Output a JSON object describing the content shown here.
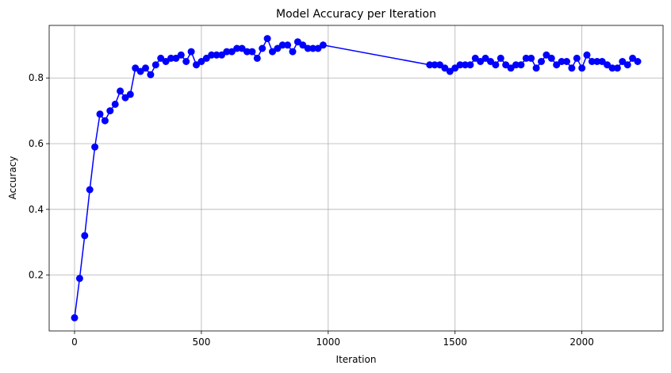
{
  "chart_data": {
    "type": "line",
    "title": "Model Accuracy per Iteration",
    "xlabel": "Iteration",
    "ylabel": "Accuracy",
    "xlim": [
      -100,
      2320
    ],
    "ylim": [
      0.03,
      0.96
    ],
    "xticks": [
      0,
      500,
      1000,
      1500,
      2000
    ],
    "yticks": [
      0.2,
      0.4,
      0.6,
      0.8
    ],
    "xtick_labels": [
      "0",
      "500",
      "1000",
      "1500",
      "2000"
    ],
    "ytick_labels": [
      "0.2",
      "0.4",
      "0.6",
      "0.8"
    ],
    "grid": true,
    "series": [
      {
        "color": "#0000ff",
        "marker": "circle",
        "x": [
          0,
          20,
          40,
          60,
          80,
          100,
          120,
          140,
          160,
          180,
          200,
          220,
          240,
          260,
          280,
          300,
          320,
          340,
          360,
          380,
          400,
          420,
          440,
          460,
          480,
          500,
          520,
          540,
          560,
          580,
          600,
          620,
          640,
          660,
          680,
          700,
          720,
          740,
          760,
          780,
          800,
          820,
          840,
          860,
          880,
          900,
          920,
          940,
          960,
          980,
          1400,
          1420,
          1440,
          1460,
          1480,
          1500,
          1520,
          1540,
          1560,
          1580,
          1600,
          1620,
          1640,
          1660,
          1680,
          1700,
          1720,
          1740,
          1760,
          1780,
          1800,
          1820,
          1840,
          1860,
          1880,
          1900,
          1920,
          1940,
          1960,
          1980,
          2000,
          2020,
          2040,
          2060,
          2080,
          2100,
          2120,
          2140,
          2160,
          2180,
          2200,
          2220
        ],
        "y": [
          0.07,
          0.19,
          0.32,
          0.46,
          0.59,
          0.69,
          0.67,
          0.7,
          0.72,
          0.76,
          0.74,
          0.75,
          0.83,
          0.82,
          0.83,
          0.81,
          0.84,
          0.86,
          0.85,
          0.86,
          0.86,
          0.87,
          0.85,
          0.88,
          0.84,
          0.85,
          0.86,
          0.87,
          0.87,
          0.87,
          0.88,
          0.88,
          0.89,
          0.89,
          0.88,
          0.88,
          0.86,
          0.89,
          0.92,
          0.88,
          0.89,
          0.9,
          0.9,
          0.88,
          0.91,
          0.9,
          0.89,
          0.89,
          0.89,
          0.9,
          0.84,
          0.84,
          0.84,
          0.83,
          0.82,
          0.83,
          0.84,
          0.84,
          0.84,
          0.86,
          0.85,
          0.86,
          0.85,
          0.84,
          0.86,
          0.84,
          0.83,
          0.84,
          0.84,
          0.86,
          0.86,
          0.83,
          0.85,
          0.87,
          0.86,
          0.84,
          0.85,
          0.85,
          0.83,
          0.86,
          0.83,
          0.87,
          0.85,
          0.85,
          0.85,
          0.84,
          0.83,
          0.83,
          0.85,
          0.84,
          0.86,
          0.85
        ]
      }
    ]
  }
}
